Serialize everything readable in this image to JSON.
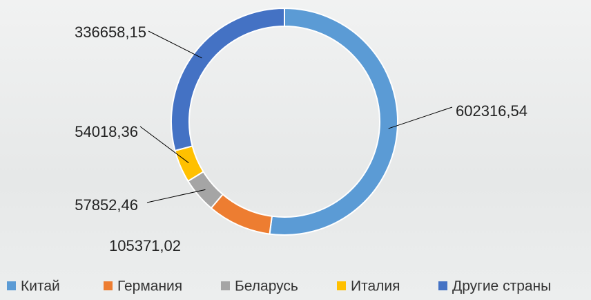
{
  "chart_data": {
    "type": "donut",
    "categories": [
      "Китай",
      "Германия",
      "Беларусь",
      "Италия",
      "Другие страны"
    ],
    "values": [
      602316.54,
      105371.02,
      57852.46,
      54018.36,
      336658.15
    ],
    "value_labels": [
      "602316,54",
      "105371,02",
      "57852,46",
      "54018,36",
      "336658,15"
    ],
    "colors": [
      "#5b9bd5",
      "#ed7d31",
      "#a5a5a5",
      "#ffc000",
      "#4472c4"
    ],
    "legend": "bottom"
  }
}
